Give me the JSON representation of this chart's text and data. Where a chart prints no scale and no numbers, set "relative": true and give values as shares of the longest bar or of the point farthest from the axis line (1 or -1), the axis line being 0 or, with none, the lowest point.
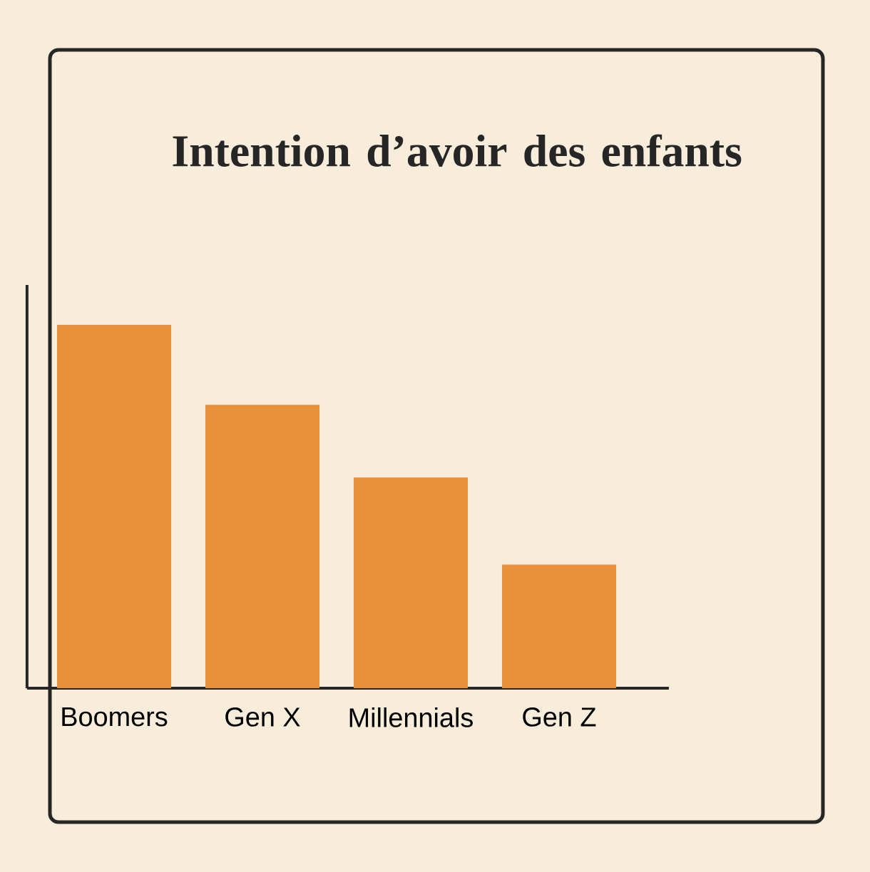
{
  "chart_data": {
    "type": "bar",
    "title": "Intention d’avoir des enfants",
    "categories": [
      "Boomers",
      "Gen X",
      "Millennials",
      "Gen Z"
    ],
    "values": [
      1,
      0.78,
      0.58,
      0.34
    ],
    "color": "#e8903a",
    "relative": true
  }
}
